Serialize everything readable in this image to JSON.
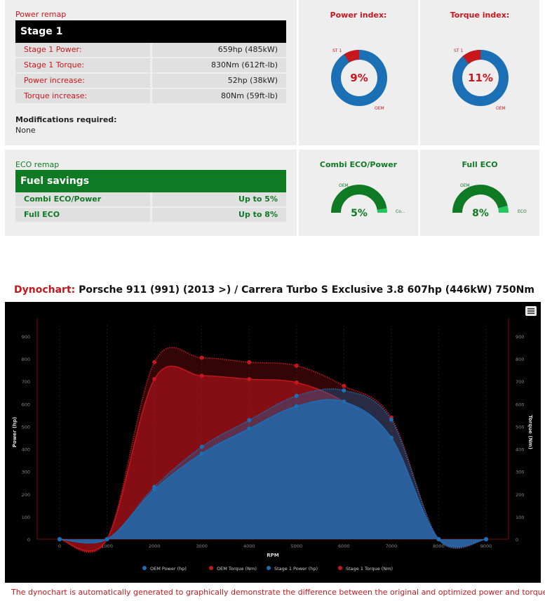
{
  "power_remap": {
    "section_label": "Power remap",
    "stage_title": "Stage 1",
    "rows": [
      {
        "label": "Stage 1 Power:",
        "value": "659hp (485kW)"
      },
      {
        "label": "Stage 1 Torque:",
        "value": "830Nm (612ft-lb)"
      },
      {
        "label": "Power increase:",
        "value": "52hp (38kW)"
      },
      {
        "label": "Torque increase:",
        "value": "80Nm (59ft-lb)"
      }
    ],
    "mods_title": "Modifications required:",
    "mods_value": "None"
  },
  "eco_remap": {
    "section_label": "ECO remap",
    "title": "Fuel savings",
    "rows": [
      {
        "label": "Combi ECO/Power",
        "value": "Up to 5%"
      },
      {
        "label": "Full ECO",
        "value": "Up to 8%"
      }
    ]
  },
  "gauges": {
    "power_index": {
      "title": "Power index:",
      "value_text": "9%",
      "value": 9,
      "label_a": "ST 1",
      "label_b": "OEM"
    },
    "torque_index": {
      "title": "Torque index:",
      "value_text": "11%",
      "value": 11,
      "label_a": "ST 1",
      "label_b": "OEM"
    },
    "combi_eco": {
      "title": "Combi ECO/Power",
      "value_text": "5%",
      "value": 5,
      "label_a": "OEM",
      "label_b": "Co..."
    },
    "full_eco": {
      "title": "Full ECO",
      "value_text": "8%",
      "value": 8,
      "label_a": "OEM",
      "label_b": "ECO"
    }
  },
  "colors": {
    "red": "#c8161d",
    "blue": "#1a6fb5",
    "green": "#0e7a24",
    "light_green": "#22c55e"
  },
  "dyno": {
    "title_label": "Dynochart:",
    "title_text": "Porsche 911 (991) (2013 >) / Carrera Turbo S Exclusive 3.8 607hp (446kW) 750Nm",
    "footnote": "The dynochart is automatically generated to graphically demonstrate the difference between the original and optimized power and torque."
  },
  "chart_data": {
    "type": "area",
    "xlabel": "RPM",
    "ylabel": "Power (hp)",
    "y2label": "Torque (Nm)",
    "xlim": [
      0,
      9000
    ],
    "ylim": [
      0,
      900
    ],
    "y2lim": [
      0,
      900
    ],
    "x_ticks": [
      0,
      1000,
      2000,
      3000,
      4000,
      5000,
      6000,
      7000,
      8000,
      9000
    ],
    "y_ticks": [
      0,
      100,
      200,
      300,
      400,
      500,
      600,
      700,
      800,
      900
    ],
    "legend_position": "bottom",
    "series": [
      {
        "name": "OEM Power (hp)",
        "color": "#1a6fb5",
        "points": [
          [
            0,
            0
          ],
          [
            1000,
            0
          ],
          [
            2000,
            220
          ],
          [
            3000,
            380
          ],
          [
            4000,
            490
          ],
          [
            5000,
            590
          ],
          [
            6000,
            610
          ],
          [
            7000,
            450
          ],
          [
            8000,
            0
          ],
          [
            9000,
            0
          ]
        ]
      },
      {
        "name": "OEM Torque (Nm)",
        "color": "#c8161d",
        "points": [
          [
            0,
            0
          ],
          [
            1000,
            0
          ],
          [
            2000,
            710
          ],
          [
            3000,
            725
          ],
          [
            4000,
            710
          ],
          [
            5000,
            695
          ],
          [
            6000,
            610
          ],
          [
            7000,
            450
          ],
          [
            8000,
            0
          ],
          [
            9000,
            0
          ]
        ]
      },
      {
        "name": "Stage 1 Power (hp)",
        "color": "#1a6fb5",
        "points": [
          [
            0,
            0
          ],
          [
            1000,
            0
          ],
          [
            2000,
            232
          ],
          [
            3000,
            410
          ],
          [
            4000,
            528
          ],
          [
            5000,
            636
          ],
          [
            6000,
            660
          ],
          [
            7000,
            530
          ],
          [
            8000,
            0
          ],
          [
            9000,
            0
          ]
        ]
      },
      {
        "name": "Stage 1 Torque (Nm)",
        "color": "#c8161d",
        "points": [
          [
            0,
            0
          ],
          [
            1000,
            0
          ],
          [
            2000,
            785
          ],
          [
            3000,
            805
          ],
          [
            4000,
            785
          ],
          [
            5000,
            770
          ],
          [
            6000,
            680
          ],
          [
            7000,
            540
          ],
          [
            8000,
            0
          ],
          [
            9000,
            0
          ]
        ]
      }
    ]
  }
}
